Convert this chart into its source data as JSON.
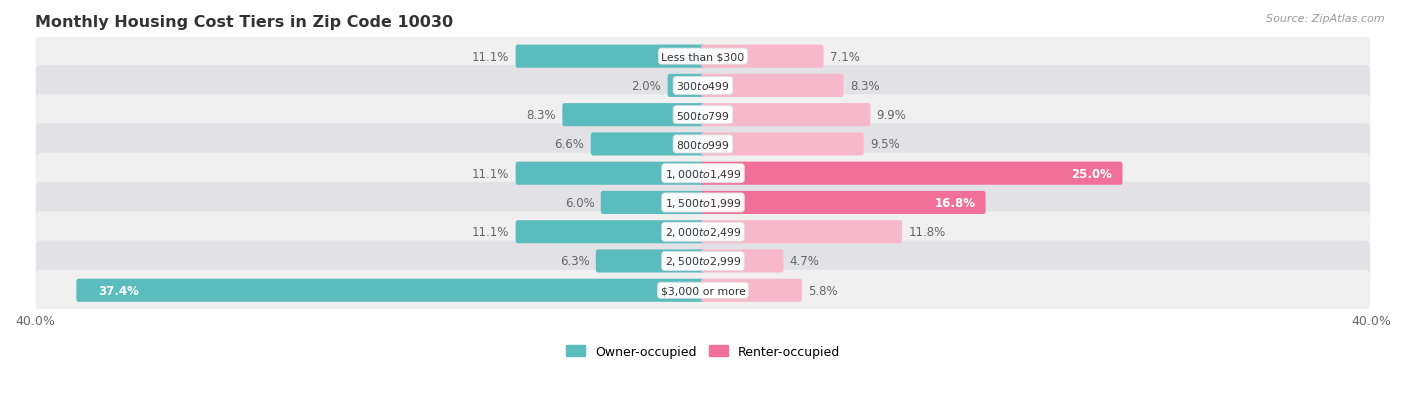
{
  "title": "Monthly Housing Cost Tiers in Zip Code 10030",
  "source": "Source: ZipAtlas.com",
  "categories": [
    "Less than $300",
    "$300 to $499",
    "$500 to $799",
    "$800 to $999",
    "$1,000 to $1,499",
    "$1,500 to $1,999",
    "$2,000 to $2,499",
    "$2,500 to $2,999",
    "$3,000 or more"
  ],
  "owner_values": [
    11.1,
    2.0,
    8.3,
    6.6,
    11.1,
    6.0,
    11.1,
    6.3,
    37.4
  ],
  "renter_values": [
    7.1,
    8.3,
    9.9,
    9.5,
    25.0,
    16.8,
    11.8,
    4.7,
    5.8
  ],
  "owner_color": "#5bbcbe",
  "renter_color_dark": "#f0709a",
  "renter_color_light": "#f8b8cc",
  "row_bg_light": "#f0f0f0",
  "row_bg_dark": "#e2e2e6",
  "axis_max": 40.0,
  "label_color": "#666666",
  "title_color": "#333333",
  "legend_owner": "Owner-occupied",
  "legend_renter": "Renter-occupied"
}
